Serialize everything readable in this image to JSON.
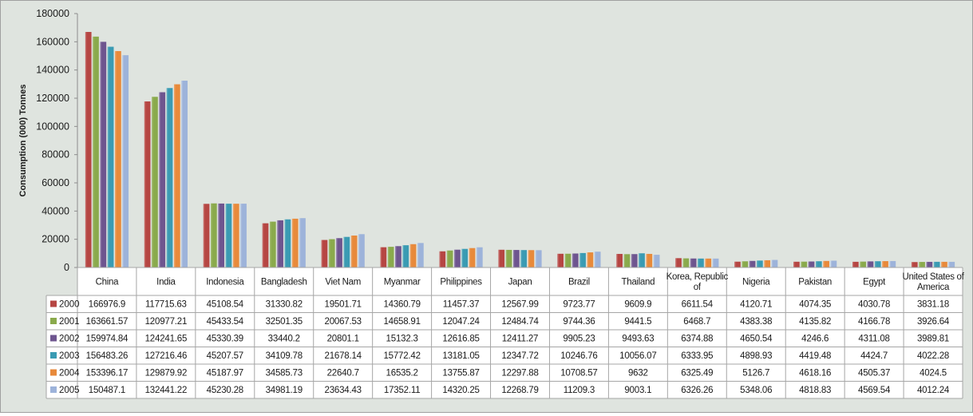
{
  "chart_data": {
    "type": "bar",
    "ylabel": "Consumption (000) Tonnes",
    "ylim": [
      0,
      180000
    ],
    "yticks": [
      0,
      20000,
      40000,
      60000,
      80000,
      100000,
      120000,
      140000,
      160000,
      180000
    ],
    "ytick_labels": [
      "0",
      "20000",
      "40000",
      "60000",
      "80000",
      "100000",
      "120000",
      "140000",
      "160000",
      "180000"
    ],
    "grid": false,
    "legend": "data-table-rows",
    "categories": [
      "China",
      "India",
      "Indonesia",
      "Bangladesh",
      "Viet Nam",
      "Myanmar",
      "Philippines",
      "Japan",
      "Brazil",
      "Thailand",
      "Korea, Republic of",
      "Nigeria",
      "Pakistan",
      "Egypt",
      "United States of America"
    ],
    "category_lines": [
      [
        "China"
      ],
      [
        "India"
      ],
      [
        "Indonesia"
      ],
      [
        "Bangladesh"
      ],
      [
        "Viet Nam"
      ],
      [
        "Myanmar"
      ],
      [
        "Philippines"
      ],
      [
        "Japan"
      ],
      [
        "Brazil"
      ],
      [
        "Thailand"
      ],
      [
        "Korea, Republic",
        "of"
      ],
      [
        "Nigeria"
      ],
      [
        "Pakistan"
      ],
      [
        "Egypt"
      ],
      [
        "United States of",
        "America"
      ]
    ],
    "series": [
      {
        "name": "2000",
        "color": "#b64643",
        "values": [
          166976.9,
          117715.63,
          45108.54,
          31330.82,
          19501.71,
          14360.79,
          11457.37,
          12567.99,
          9723.77,
          9609.9,
          6611.54,
          4120.71,
          4074.35,
          4030.78,
          3831.18
        ],
        "labels": [
          "166976.9",
          "117715.63",
          "45108.54",
          "31330.82",
          "19501.71",
          "14360.79",
          "11457.37",
          "12567.99",
          "9723.77",
          "9609.9",
          "6611.54",
          "4120.71",
          "4074.35",
          "4030.78",
          "3831.18"
        ]
      },
      {
        "name": "2001",
        "color": "#8aaa4c",
        "values": [
          163661.57,
          120977.21,
          45433.54,
          32501.35,
          20067.53,
          14658.91,
          12047.24,
          12484.74,
          9744.36,
          9441.5,
          6468.7,
          4383.38,
          4135.82,
          4166.78,
          3926.64
        ],
        "labels": [
          "163661.57",
          "120977.21",
          "45433.54",
          "32501.35",
          "20067.53",
          "14658.91",
          "12047.24",
          "12484.74",
          "9744.36",
          "9441.5",
          "6468.7",
          "4383.38",
          "4135.82",
          "4166.78",
          "3926.64"
        ]
      },
      {
        "name": "2002",
        "color": "#6e558f",
        "values": [
          159974.84,
          124241.65,
          45330.39,
          33440.2,
          20801.1,
          15132.3,
          12616.85,
          12411.27,
          9905.23,
          9493.63,
          6374.88,
          4650.54,
          4246.6,
          4311.08,
          3989.81
        ],
        "labels": [
          "159974.84",
          "124241.65",
          "45330.39",
          "33440.2",
          "20801.1",
          "15132.3",
          "12616.85",
          "12411.27",
          "9905.23",
          "9493.63",
          "6374.88",
          "4650.54",
          "4246.6",
          "4311.08",
          "3989.81"
        ]
      },
      {
        "name": "2003",
        "color": "#3a9bb3",
        "values": [
          156483.26,
          127216.46,
          45207.57,
          34109.78,
          21678.14,
          15772.42,
          13181.05,
          12347.72,
          10246.76,
          10056.07,
          6333.95,
          4898.93,
          4419.48,
          4424.7,
          4022.28
        ],
        "labels": [
          "156483.26",
          "127216.46",
          "45207.57",
          "34109.78",
          "21678.14",
          "15772.42",
          "13181.05",
          "12347.72",
          "10246.76",
          "10056.07",
          "6333.95",
          "4898.93",
          "4419.48",
          "4424.7",
          "4022.28"
        ]
      },
      {
        "name": "2004",
        "color": "#e88a3b",
        "values": [
          153396.17,
          129879.92,
          45187.97,
          34585.73,
          22640.7,
          16535.2,
          13755.87,
          12297.88,
          10708.57,
          9632,
          6325.49,
          5126.7,
          4618.16,
          4505.37,
          4024.5
        ],
        "labels": [
          "153396.17",
          "129879.92",
          "45187.97",
          "34585.73",
          "22640.7",
          "16535.2",
          "13755.87",
          "12297.88",
          "10708.57",
          "9632",
          "6325.49",
          "5126.7",
          "4618.16",
          "4505.37",
          "4024.5"
        ]
      },
      {
        "name": "2005",
        "color": "#9db3da",
        "values": [
          150487.1,
          132441.22,
          45230.28,
          34981.19,
          23634.43,
          17352.11,
          14320.25,
          12268.79,
          11209.3,
          9003.1,
          6326.26,
          5348.06,
          4818.83,
          4569.54,
          4012.24
        ],
        "labels": [
          "150487.1",
          "132441.22",
          "45230.28",
          "34981.19",
          "23634.43",
          "17352.11",
          "14320.25",
          "12268.79",
          "11209.3",
          "9003.1",
          "6326.26",
          "5348.06",
          "4818.83",
          "4569.54",
          "4012.24"
        ]
      }
    ]
  }
}
